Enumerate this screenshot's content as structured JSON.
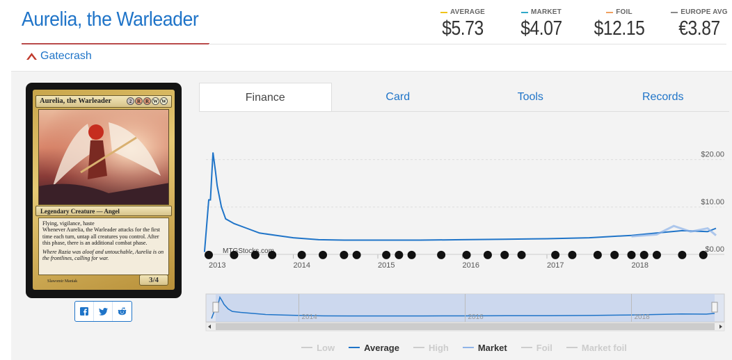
{
  "card": {
    "title": "Aurelia, the Warleader",
    "set_name": "Gatecrash",
    "image": {
      "name": "Aurelia, the Warleader",
      "type_line": "Legendary Creature — Angel",
      "rules_text": [
        "Flying, vigilance, haste",
        "Whenever Aurelia, the Warleader attacks for the first time each turn, untap all creatures you control. After this phase, there is an additional combat phase."
      ],
      "flavor_text": "Where Razia was aloof and untouchable, Aurelia is on the frontlines, calling for war.",
      "power_toughness": "3/4",
      "artist": "Slawomir Maniak",
      "mana_cost": [
        "2",
        "R",
        "R",
        "W",
        "W"
      ]
    }
  },
  "prices": [
    {
      "label": "AVERAGE",
      "value": "$5.73",
      "color": "#f0c419"
    },
    {
      "label": "MARKET",
      "value": "$4.07",
      "color": "#30a8c8"
    },
    {
      "label": "FOIL",
      "value": "$12.15",
      "color": "#f0a060"
    },
    {
      "label": "EUROPE AVG",
      "value": "€3.87",
      "color": "#888888"
    }
  ],
  "share": [
    "f-icon",
    "twitter-icon",
    "reddit-icon"
  ],
  "tabs": [
    {
      "label": "Finance",
      "active": true
    },
    {
      "label": "Card",
      "active": false
    },
    {
      "label": "Tools",
      "active": false
    },
    {
      "label": "Records",
      "active": false
    }
  ],
  "chart": {
    "watermark": "MTGStocks.com",
    "y_ticks": [
      "$20.00",
      "$10.00",
      "$0.00"
    ],
    "x_ticks": [
      "2013",
      "2014",
      "2015",
      "2016",
      "2017",
      "2018"
    ],
    "navigator_ticks": [
      "2014",
      "2016",
      "2018"
    ],
    "legend": [
      {
        "label": "Low",
        "active": false,
        "color": "#cccccc"
      },
      {
        "label": "Average",
        "active": true,
        "color": "#1f74c8"
      },
      {
        "label": "High",
        "active": false,
        "color": "#cccccc"
      },
      {
        "label": "Market",
        "active": true,
        "color": "#8fb4e8"
      },
      {
        "label": "Foil",
        "active": false,
        "color": "#cccccc"
      },
      {
        "label": "Market foil",
        "active": false,
        "color": "#cccccc"
      }
    ]
  },
  "chart_data": {
    "type": "line",
    "ylim": [
      0,
      22
    ],
    "y_ticks": [
      0,
      10,
      20
    ],
    "series": [
      {
        "name": "Average",
        "x": [
          2012.95,
          2013.0,
          2013.02,
          2013.05,
          2013.08,
          2013.1,
          2013.15,
          2013.2,
          2013.3,
          2013.45,
          2013.6,
          2013.8,
          2014.0,
          2014.3,
          2014.6,
          2015.0,
          2015.5,
          2016.0,
          2016.5,
          2017.0,
          2017.5,
          2018.0,
          2018.3,
          2018.6,
          2018.9,
          2019.0
        ],
        "y": [
          0.5,
          11.5,
          11.5,
          21.5,
          17.5,
          14.5,
          10.0,
          7.5,
          6.5,
          5.5,
          4.5,
          4.0,
          3.5,
          3.1,
          3.0,
          3.0,
          3.0,
          3.1,
          3.2,
          3.3,
          3.5,
          4.0,
          4.5,
          5.0,
          4.8,
          5.5
        ]
      },
      {
        "name": "Market",
        "x": [
          2018.0,
          2018.3,
          2018.5,
          2018.7,
          2018.9,
          2019.0
        ],
        "y": [
          3.8,
          4.2,
          6.0,
          4.8,
          5.5,
          4.0
        ]
      }
    ]
  }
}
